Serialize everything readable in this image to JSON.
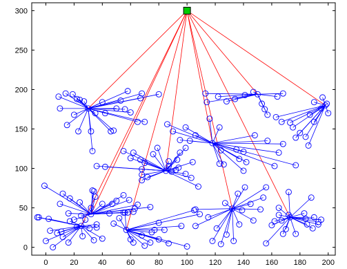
{
  "chart_data": {
    "type": "scatter",
    "title": "",
    "xlabel": "",
    "ylabel": "",
    "xlim": [
      -10,
      205
    ],
    "ylim": [
      -10,
      310
    ],
    "xticks": [
      0,
      20,
      40,
      60,
      80,
      100,
      120,
      140,
      160,
      180,
      200
    ],
    "yticks": [
      0,
      50,
      100,
      150,
      200,
      250,
      300
    ],
    "xtick_labels": [
      "0",
      "20",
      "40",
      "60",
      "80",
      "100",
      "120",
      "140",
      "160",
      "180",
      "200"
    ],
    "ytick_labels": [
      "0",
      "50",
      "100",
      "150",
      "200",
      "250",
      "300"
    ],
    "grid": false,
    "colors": {
      "node": "#0000ff",
      "edge_cluster": "#0000ff",
      "edge_sink": "#ff0000",
      "sink_fill": "#00cc00",
      "sink_stroke": "#000000"
    },
    "sink": {
      "x": 100,
      "y": 300
    },
    "clusters": [
      {
        "head": [
          30,
          176
        ],
        "members": [
          [
            9,
            191
          ],
          [
            10,
            176
          ],
          [
            14,
            195
          ],
          [
            19,
            194
          ],
          [
            22,
            188
          ],
          [
            24,
            187
          ],
          [
            15,
            155
          ],
          [
            20,
            168
          ],
          [
            23,
            147
          ],
          [
            27,
            185
          ],
          [
            35,
            170
          ],
          [
            32,
            147
          ],
          [
            33,
            122
          ],
          [
            40,
            184
          ],
          [
            42,
            170
          ],
          [
            46,
            147
          ],
          [
            48,
            148
          ],
          [
            50,
            176
          ],
          [
            53,
            186
          ],
          [
            56,
            175
          ],
          [
            60,
            171
          ],
          [
            65,
            159
          ],
          [
            70,
            159
          ],
          [
            58,
            198
          ],
          [
            67,
            189
          ],
          [
            68,
            195
          ],
          [
            80,
            194
          ]
        ]
      },
      {
        "head": [
          85,
          97
        ],
        "members": [
          [
            36,
            103
          ],
          [
            42,
            102
          ],
          [
            55,
            122
          ],
          [
            60,
            113
          ],
          [
            62,
            120
          ],
          [
            67,
            111
          ],
          [
            70,
            107
          ],
          [
            68,
            99
          ],
          [
            68,
            92
          ],
          [
            68,
            85
          ],
          [
            72,
            89
          ],
          [
            76,
            118
          ],
          [
            79,
            126
          ],
          [
            87,
            109
          ],
          [
            87,
            103
          ],
          [
            89,
            96
          ],
          [
            92,
            98
          ],
          [
            94,
            101
          ],
          [
            93,
            111
          ],
          [
            95,
            120
          ],
          [
            99,
            126
          ],
          [
            104,
            108
          ],
          [
            99,
            93
          ],
          [
            103,
            88
          ],
          [
            108,
            77
          ]
        ]
      },
      {
        "head": [
          118,
          132
        ],
        "members": [
          [
            86,
            156
          ],
          [
            90,
            147
          ],
          [
            95,
            136
          ],
          [
            99,
            152
          ],
          [
            102,
            135
          ],
          [
            106,
            142
          ],
          [
            116,
            163
          ],
          [
            123,
            152
          ],
          [
            124,
            123
          ],
          [
            123,
            106
          ],
          [
            126,
            105
          ],
          [
            135,
            124
          ],
          [
            137,
            112
          ],
          [
            140,
            121
          ],
          [
            142,
            108
          ],
          [
            148,
            142
          ],
          [
            157,
            135
          ],
          [
            162,
            103
          ],
          [
            165,
            120
          ],
          [
            168,
            131
          ],
          [
            177,
            104
          ],
          [
            140,
            97
          ]
        ]
      },
      {
        "head": [
          150,
          194
        ],
        "members": [
          [
            113,
            195
          ],
          [
            122,
            191
          ],
          [
            114,
            184
          ],
          [
            128,
            185
          ],
          [
            134,
            188
          ],
          [
            141,
            193
          ],
          [
            147,
            197
          ],
          [
            153,
            182
          ],
          [
            155,
            175
          ],
          [
            157,
            168
          ],
          [
            168,
            195
          ],
          [
            164,
            191
          ]
        ]
      },
      {
        "head": [
          198,
          180
        ],
        "members": [
          [
            163,
            165
          ],
          [
            167,
            159
          ],
          [
            173,
            158
          ],
          [
            175,
            152
          ],
          [
            177,
            139
          ],
          [
            180,
            145
          ],
          [
            184,
            140
          ],
          [
            186,
            129
          ],
          [
            190,
            159
          ],
          [
            187,
            168
          ],
          [
            190,
            184
          ],
          [
            195,
            176
          ],
          [
            196,
            190
          ],
          [
            199,
            182
          ],
          [
            200,
            170
          ]
        ]
      },
      {
        "head": [
          32,
          42
        ],
        "members": [
          [
            -1,
            78
          ],
          [
            10,
            55
          ],
          [
            12,
            68
          ],
          [
            17,
            62
          ],
          [
            16,
            43
          ],
          [
            20,
            35
          ],
          [
            24,
            57
          ],
          [
            25,
            40
          ],
          [
            32,
            50
          ],
          [
            33,
            72
          ],
          [
            34,
            71
          ],
          [
            35,
            64
          ],
          [
            40,
            55
          ],
          [
            45,
            43
          ],
          [
            47,
            55
          ],
          [
            50,
            59
          ],
          [
            55,
            66
          ],
          [
            55,
            44
          ],
          [
            58,
            44
          ],
          [
            59,
            60
          ],
          [
            62,
            45
          ],
          [
            63,
            49
          ],
          [
            65,
            54
          ],
          [
            74,
            51
          ]
        ]
      },
      {
        "head": [
          25,
          27
        ],
        "members": [
          [
            -6,
            38
          ],
          [
            -5,
            38
          ],
          [
            0,
            8
          ],
          [
            2,
            36
          ],
          [
            3,
            21
          ],
          [
            5,
            0
          ],
          [
            8,
            18
          ],
          [
            11,
            20
          ],
          [
            12,
            13
          ],
          [
            16,
            6
          ],
          [
            17,
            33
          ],
          [
            22,
            26
          ],
          [
            26,
            14
          ],
          [
            28,
            35
          ],
          [
            31,
            24
          ],
          [
            34,
            9
          ],
          [
            36,
            25
          ],
          [
            36,
            29
          ],
          [
            40,
            11
          ]
        ]
      },
      {
        "head": [
          57,
          22
        ],
        "members": [
          [
            48,
            30
          ],
          [
            52,
            37
          ],
          [
            56,
            44
          ],
          [
            60,
            10
          ],
          [
            62,
            6
          ],
          [
            68,
            15
          ],
          [
            70,
            2
          ],
          [
            74,
            6
          ],
          [
            75,
            19
          ],
          [
            77,
            22
          ],
          [
            80,
            31
          ],
          [
            80,
            10
          ],
          [
            84,
            22
          ],
          [
            87,
            5
          ],
          [
            100,
            1
          ],
          [
            96,
            27
          ],
          [
            105,
            47
          ],
          [
            109,
            42
          ]
        ]
      },
      {
        "head": [
          132,
          49
        ],
        "members": [
          [
            106,
            48
          ],
          [
            106,
            27
          ],
          [
            115,
            38
          ],
          [
            118,
            8
          ],
          [
            121,
            24
          ],
          [
            124,
            4
          ],
          [
            127,
            56
          ],
          [
            128,
            16
          ],
          [
            133,
            8
          ],
          [
            137,
            29
          ],
          [
            136,
            68
          ],
          [
            139,
            47
          ],
          [
            141,
            76
          ],
          [
            145,
            55
          ],
          [
            147,
            34
          ],
          [
            152,
            48
          ],
          [
            154,
            63
          ],
          [
            156,
            76
          ]
        ]
      },
      {
        "head": [
          173,
          38
        ],
        "members": [
          [
            156,
            5
          ],
          [
            160,
            28
          ],
          [
            162,
            33
          ],
          [
            165,
            41
          ],
          [
            165,
            50
          ],
          [
            167,
            34
          ],
          [
            168,
            17
          ],
          [
            170,
            23
          ],
          [
            172,
            41
          ],
          [
            172,
            70
          ],
          [
            177,
            17
          ],
          [
            183,
            43
          ],
          [
            184,
            36
          ],
          [
            185,
            29
          ],
          [
            188,
            63
          ],
          [
            189,
            24
          ],
          [
            190,
            38
          ],
          [
            193,
            29
          ],
          [
            193,
            32
          ],
          [
            195,
            35
          ]
        ]
      }
    ]
  }
}
